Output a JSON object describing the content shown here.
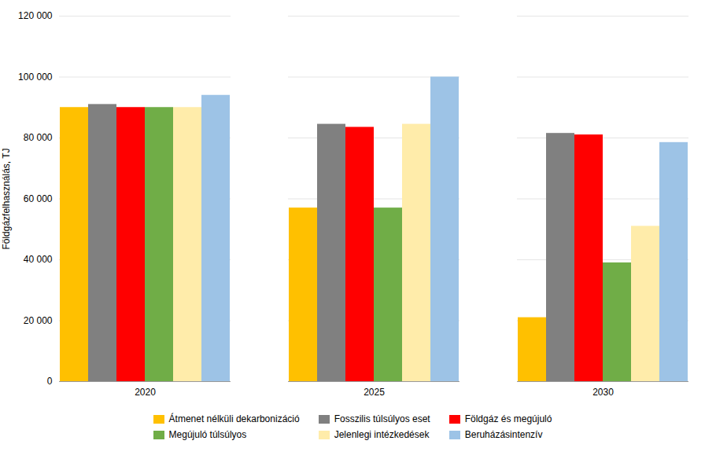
{
  "chart_data": {
    "type": "bar",
    "categories": [
      "2020",
      "2025",
      "2030"
    ],
    "series": [
      {
        "name": "Átmenet nélküli dekarbonizáció",
        "color": "#FFC000",
        "values": [
          90000,
          57000,
          21000
        ]
      },
      {
        "name": "Fosszilis túlsúlyos eset",
        "color": "#808080",
        "values": [
          91000,
          84500,
          81500
        ]
      },
      {
        "name": "Földgáz és megújuló",
        "color": "#FF0000",
        "values": [
          90000,
          83500,
          81000
        ]
      },
      {
        "name": "Megújuló túlsúlyos",
        "color": "#70AD47",
        "values": [
          90000,
          57000,
          39000
        ]
      },
      {
        "name": "Jelenlegi intézkedések",
        "color": "#FFECAA",
        "values": [
          90000,
          84500,
          51000
        ]
      },
      {
        "name": "Beruházásintenzív",
        "color": "#9DC3E6",
        "values": [
          94000,
          100000,
          78500
        ]
      }
    ],
    "ylabel": "Földgázfelhasználás, TJ",
    "ylim": [
      0,
      120000
    ],
    "yticks": [
      0,
      {
        "value": 20000,
        "label": "20 000"
      },
      {
        "value": 40000,
        "label": "40 000"
      },
      {
        "value": 60000,
        "label": "60 000"
      },
      {
        "value": 80000,
        "label": "80 000"
      },
      {
        "value": 100000,
        "label": "100 000"
      },
      {
        "value": 120000,
        "label": "120 000"
      }
    ],
    "grid": true,
    "legend": "bottom"
  }
}
